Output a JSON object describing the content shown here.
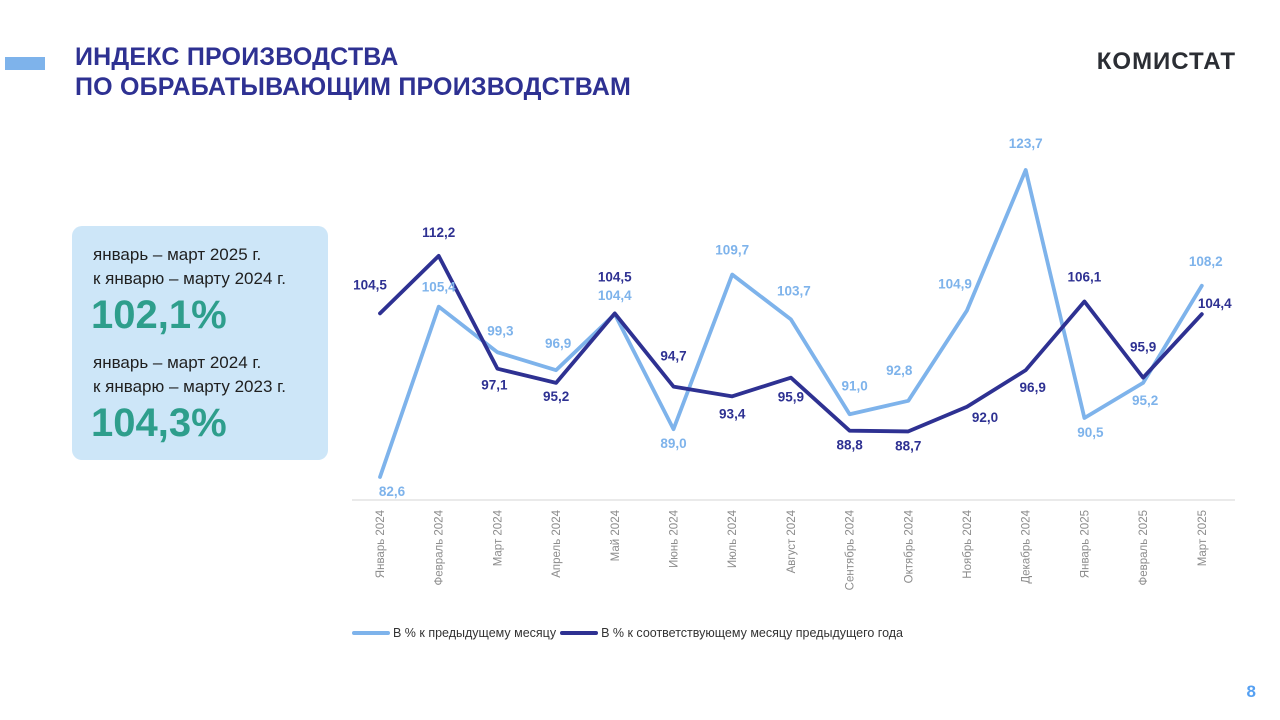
{
  "header": {
    "title_line1": "ИНДЕКС ПРОИЗВОДСТВА",
    "title_line2": "ПО ОБРАБАТЫВАЮЩИМ ПРОИЗВОДСТВАМ",
    "logo_text": "КОМИСТАТ",
    "title_color": "#2E3192",
    "accent_dash_color": "#7EB3EB"
  },
  "summary_box": {
    "background_color": "#CDE6F8",
    "value_color": "#2E9E8C",
    "items": [
      {
        "period_line1": "январь – март 2025 г.",
        "period_line2": "к январю – марту 2024 г.",
        "value": "102,1%"
      },
      {
        "period_line1": "январь – март 2024 г.",
        "period_line2": "к январю – марту 2023 г.",
        "value": "104,3%"
      }
    ]
  },
  "chart_data": {
    "type": "line",
    "title": "ИНДЕКС ПРОИЗВОДСТВА ПО ОБРАБАТЫВАЮЩИМ ПРОИЗВОДСТВАМ",
    "categories": [
      "Январь 2024",
      "Февраль 2024",
      "Март 2024",
      "Апрель 2024",
      "Май 2024",
      "Июнь 2024",
      "Июль 2024",
      "Август 2024",
      "Сентябрь 2024",
      "Октябрь 2024",
      "Ноябрь 2024",
      "Декабрь 2024",
      "Январь 2025",
      "Февраль 2025",
      "Март 2025"
    ],
    "series": [
      {
        "name": "В % к предыдущему месяцу",
        "color": "#7EB3EB",
        "values": [
          82.6,
          105.4,
          99.3,
          96.9,
          104.4,
          89.0,
          109.7,
          103.7,
          91.0,
          92.8,
          104.9,
          123.7,
          90.5,
          95.2,
          108.2
        ],
        "label_dx": [
          12,
          0,
          3,
          2,
          0,
          0,
          0,
          3,
          5,
          -9,
          -12,
          0,
          6,
          2,
          4
        ],
        "label_dy": [
          19,
          -15,
          -17,
          -22,
          -14,
          19,
          -20,
          -24,
          -24,
          -26,
          -22,
          -22,
          19,
          22,
          -20
        ]
      },
      {
        "name": "В % к соответствующему месяцу предыдущего года",
        "color": "#2E3192",
        "values": [
          104.5,
          112.2,
          97.1,
          95.2,
          104.5,
          94.7,
          93.4,
          95.9,
          88.8,
          88.7,
          92.0,
          96.9,
          106.1,
          95.9,
          104.4
        ],
        "label_dx": [
          -10,
          0,
          -3,
          0,
          0,
          0,
          0,
          0,
          0,
          0,
          18,
          7,
          0,
          0,
          13
        ],
        "label_dy": [
          -24,
          -19,
          21,
          18,
          -32,
          -26,
          22,
          24,
          19,
          19,
          15,
          22,
          -20,
          -26,
          -6
        ]
      }
    ],
    "ylim": [
      79.5,
      130
    ],
    "grid": false,
    "legend_position": "bottom",
    "decimal_separator": ",",
    "axis_line_color": "#D5D5D5",
    "category_label_color": "#8C8C8C"
  },
  "footer": {
    "page_number": "8",
    "page_number_color": "#55A0F2"
  }
}
